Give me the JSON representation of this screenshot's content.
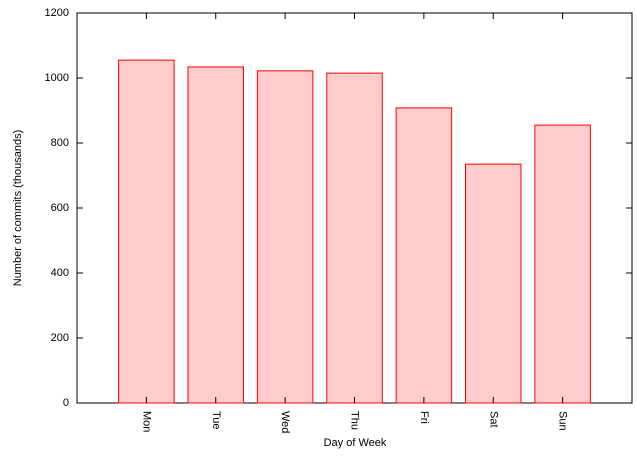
{
  "chart_data": {
    "type": "bar",
    "x_label": "Day of Week",
    "y_label": "Number of commits (thousands)",
    "categories": [
      "Mon",
      "Tue",
      "Wed",
      "Thu",
      "Fri",
      "Sat",
      "Sun"
    ],
    "values": [
      1055,
      1034,
      1022,
      1015,
      908,
      735,
      855
    ],
    "color": "#ffcccc",
    "edge_color": "#ff0000",
    "ylim": [
      0,
      1200
    ],
    "yticks": [
      0,
      200,
      400,
      600,
      800,
      1000,
      1200
    ]
  }
}
